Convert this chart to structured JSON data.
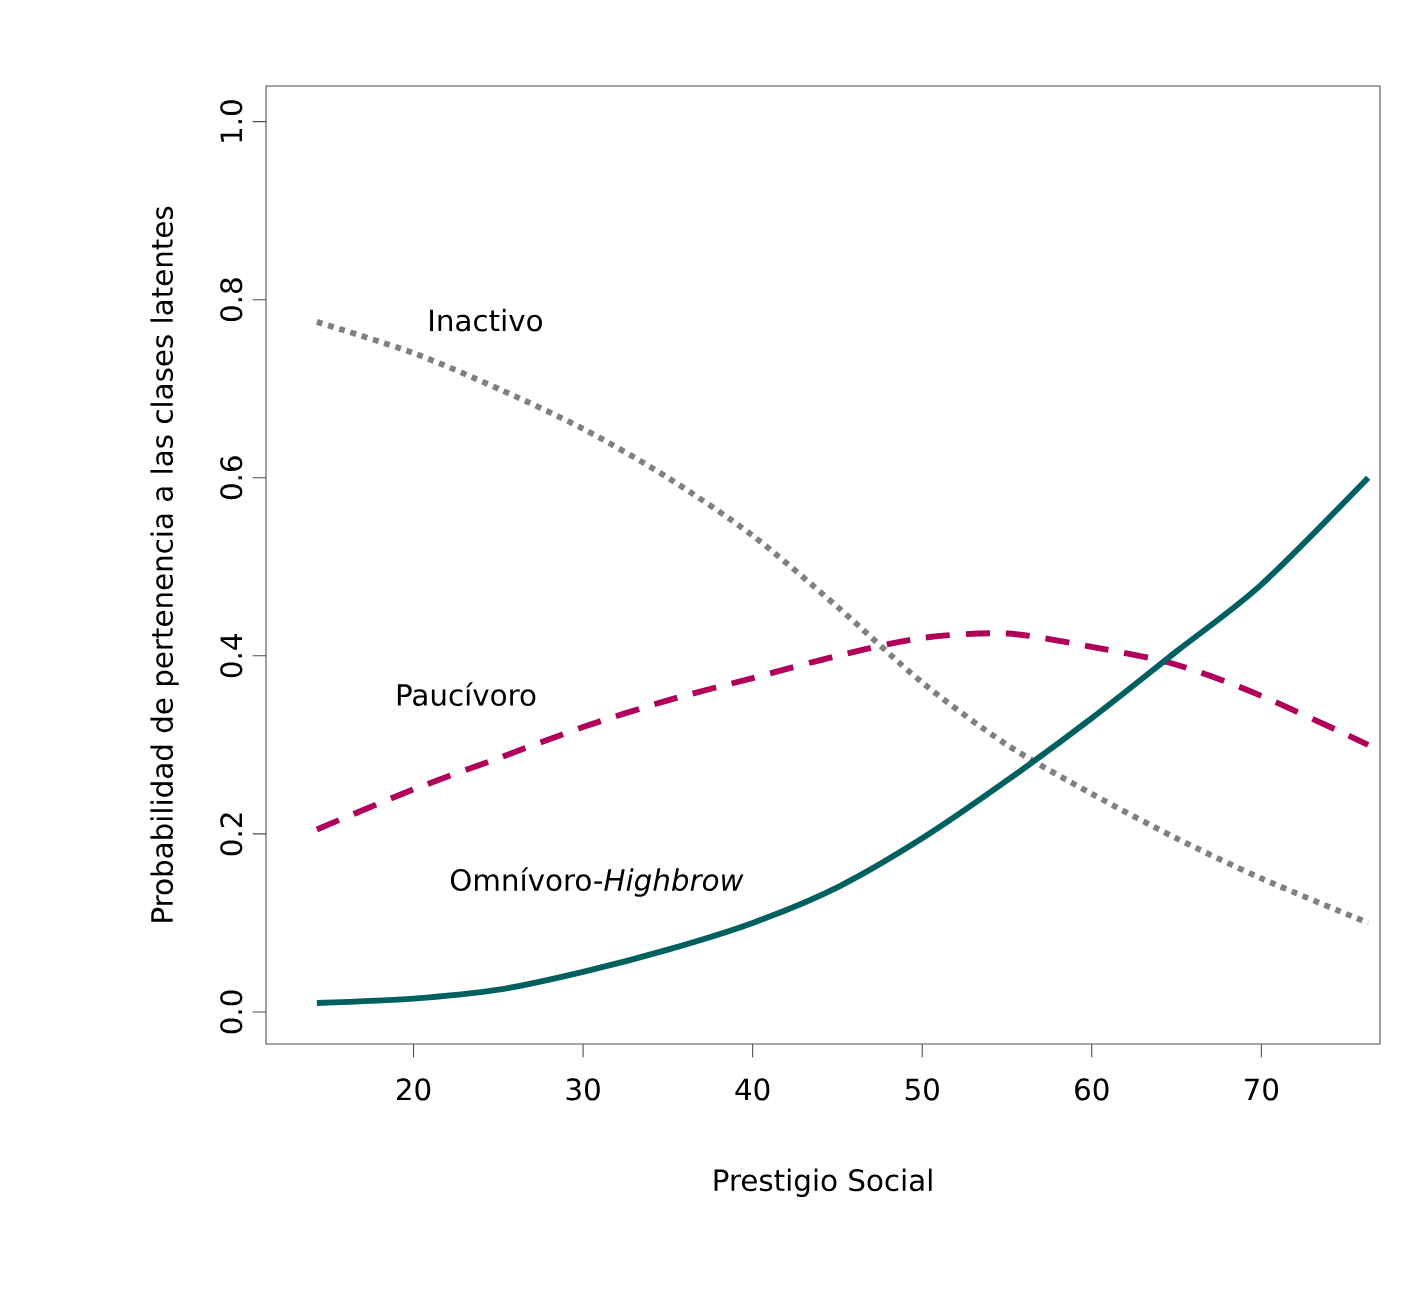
{
  "chart_data": {
    "type": "line",
    "xlabel": "Prestigio Social",
    "ylabel": "Probabilidad de pertenencia a las clases latentes",
    "xlim": [
      11.3,
      77.0
    ],
    "ylim": [
      -0.036,
      1.04
    ],
    "xticks": [
      20,
      30,
      40,
      50,
      60,
      70
    ],
    "yticks": [
      {
        "value": 0,
        "label": "0.0"
      },
      {
        "value": 0.2,
        "label": "0.2"
      },
      {
        "value": 0.4,
        "label": "0.4"
      },
      {
        "value": 0.6,
        "label": "0.6"
      },
      {
        "value": 0.8,
        "label": "0.8"
      },
      {
        "value": 1,
        "label": "1.0"
      }
    ],
    "grid": false,
    "legend": false,
    "marker": "none",
    "x": [
      14.3,
      20,
      25,
      30,
      35,
      40,
      45,
      50,
      55,
      60,
      65,
      70,
      76.3
    ],
    "series": [
      {
        "name": "Inactivo",
        "color": "#808080",
        "line_style": "dotted",
        "values": [
          0.775,
          0.74,
          0.7,
          0.655,
          0.6,
          0.535,
          0.455,
          0.37,
          0.3,
          0.245,
          0.195,
          0.15,
          0.1
        ]
      },
      {
        "name": "Paucívoro",
        "color": "#b0005a",
        "line_style": "dashed",
        "values": [
          0.205,
          0.25,
          0.285,
          0.32,
          0.35,
          0.375,
          0.4,
          0.42,
          0.425,
          0.41,
          0.39,
          0.355,
          0.3
        ]
      },
      {
        "name": "Omnívoro-*Highbrow*",
        "color": "#006060",
        "line_style": "solid",
        "values": [
          0.01,
          0.015,
          0.025,
          0.045,
          0.07,
          0.1,
          0.14,
          0.195,
          0.26,
          0.33,
          0.405,
          0.48,
          0.6
        ]
      }
    ]
  }
}
